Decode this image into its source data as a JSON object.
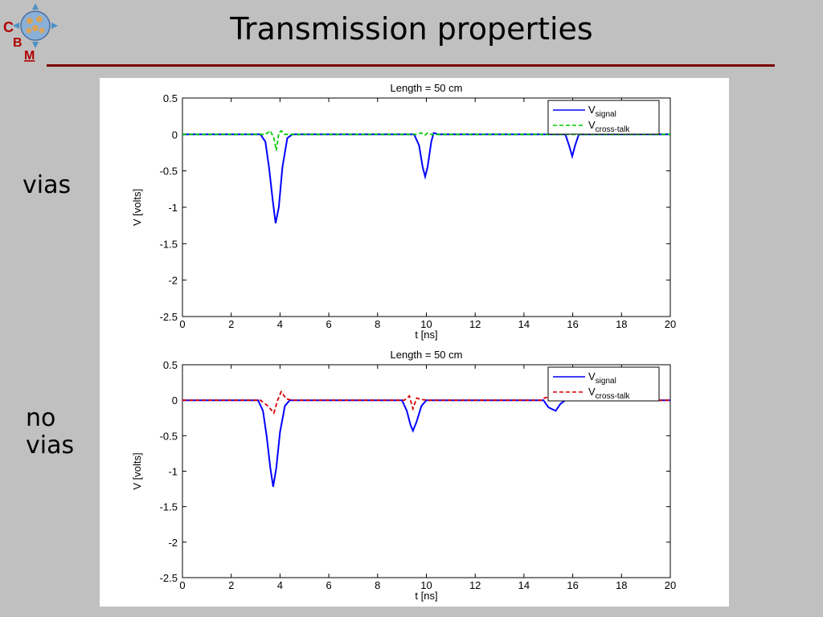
{
  "slide": {
    "title": "Transmission properties",
    "logo_letters": [
      "C",
      "B",
      "M"
    ],
    "label_vias": "vias",
    "label_novias_line1": "no",
    "label_novias_line2": "vias"
  },
  "colors": {
    "background": "#c0c0c0",
    "rule": "#7a0000",
    "signal": "#0000ff",
    "crosstalk_vias": "#00cc00",
    "crosstalk_novias": "#dd0000"
  },
  "chart_data": [
    {
      "type": "line",
      "title": "Length = 50 cm",
      "xlabel": "t [ns]",
      "ylabel": "V [volts]",
      "xlim": [
        0,
        20
      ],
      "ylim": [
        -2.5,
        0.5
      ],
      "xticks": [
        0,
        2,
        4,
        6,
        8,
        10,
        12,
        14,
        16,
        18,
        20
      ],
      "xticklabels": [
        "0",
        "2",
        "4",
        "6",
        "8",
        "10",
        "12",
        "14",
        "16",
        "18",
        "20"
      ],
      "yticks": [
        0.5,
        0,
        -0.5,
        -1,
        -1.5,
        -2,
        -2.5
      ],
      "yticklabels": [
        "0.5",
        "0",
        "-0.5",
        "-1",
        "-1.5",
        "-2",
        "-2.5"
      ],
      "grid": false,
      "legend_position": "top-right",
      "series": [
        {
          "name": "V_signal",
          "legend_main": "V",
          "legend_sub": "signal",
          "style": "solid",
          "color": "#0000ff",
          "x": [
            0,
            3.2,
            3.4,
            3.55,
            3.7,
            3.82,
            3.95,
            4.1,
            4.3,
            4.5,
            9.5,
            9.7,
            9.85,
            9.95,
            10.05,
            10.2,
            10.3,
            10.5,
            15.7,
            15.85,
            15.98,
            16.1,
            16.25,
            20
          ],
          "y": [
            0,
            0,
            -0.1,
            -0.45,
            -0.9,
            -1.22,
            -1.0,
            -0.45,
            -0.05,
            0,
            0,
            -0.15,
            -0.45,
            -0.58,
            -0.45,
            -0.1,
            0.02,
            0,
            0,
            -0.15,
            -0.3,
            -0.15,
            0,
            0
          ]
        },
        {
          "name": "V_cross-talk",
          "legend_main": "V",
          "legend_sub": "cross-talk",
          "style": "dashed",
          "color": "#00cc00",
          "x": [
            0,
            3.4,
            3.6,
            3.75,
            3.85,
            3.95,
            4.05,
            4.2,
            4.4,
            9.6,
            9.8,
            9.95,
            10.05,
            10.2,
            10.4,
            20
          ],
          "y": [
            0,
            0,
            0.05,
            -0.05,
            -0.22,
            0.02,
            0.05,
            0,
            0,
            0,
            0.02,
            -0.01,
            0.02,
            0,
            0,
            0
          ]
        }
      ]
    },
    {
      "type": "line",
      "title": "Length = 50 cm",
      "xlabel": "t [ns]",
      "ylabel": "V [volts]",
      "xlim": [
        0,
        20
      ],
      "ylim": [
        -2.5,
        0.5
      ],
      "xticks": [
        0,
        2,
        4,
        6,
        8,
        10,
        12,
        14,
        16,
        18,
        20
      ],
      "xticklabels": [
        "0",
        "2",
        "4",
        "6",
        "8",
        "10",
        "12",
        "14",
        "16",
        "18",
        "20"
      ],
      "yticks": [
        0.5,
        0,
        -0.5,
        -1,
        -1.5,
        -2,
        -2.5
      ],
      "yticklabels": [
        "0.5",
        "0",
        "-0.5",
        "-1",
        "-1.5",
        "-2",
        "-2.5"
      ],
      "grid": false,
      "legend_position": "top-right",
      "series": [
        {
          "name": "V_signal",
          "legend_main": "V",
          "legend_sub": "signal",
          "style": "solid",
          "color": "#0000ff",
          "x": [
            0,
            3.1,
            3.3,
            3.45,
            3.6,
            3.72,
            3.85,
            4.0,
            4.2,
            4.4,
            9.0,
            9.2,
            9.35,
            9.45,
            9.6,
            9.8,
            10.0,
            14.8,
            15.0,
            15.3,
            15.5,
            15.7,
            20
          ],
          "y": [
            0,
            0,
            -0.15,
            -0.5,
            -0.95,
            -1.22,
            -0.95,
            -0.45,
            -0.08,
            0,
            0,
            -0.15,
            -0.35,
            -0.43,
            -0.3,
            -0.08,
            0,
            0,
            -0.1,
            -0.15,
            -0.05,
            0,
            0
          ]
        },
        {
          "name": "V_cross-talk",
          "legend_main": "V",
          "legend_sub": "cross-talk",
          "style": "dashed",
          "color": "#dd0000",
          "x": [
            0,
            3.2,
            3.5,
            3.75,
            3.9,
            4.05,
            4.25,
            4.5,
            9.1,
            9.3,
            9.45,
            9.6,
            9.8,
            10.1,
            14.7,
            14.9,
            15.1,
            15.3,
            20
          ],
          "y": [
            0,
            0,
            -0.08,
            -0.18,
            0.0,
            0.12,
            0.02,
            0,
            0,
            0.06,
            -0.12,
            0.03,
            0.01,
            0,
            0,
            0.04,
            0.02,
            0,
            0
          ]
        }
      ]
    }
  ]
}
